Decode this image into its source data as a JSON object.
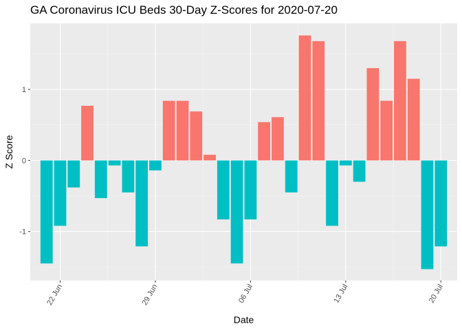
{
  "chart_data": {
    "type": "bar",
    "title": "GA Coronavirus ICU Beds 30-Day Z-Scores for 2020-07-20",
    "xlabel": "Date",
    "ylabel": "Z Score",
    "x": [
      "2020-06-21",
      "2020-06-22",
      "2020-06-23",
      "2020-06-24",
      "2020-06-25",
      "2020-06-26",
      "2020-06-27",
      "2020-06-28",
      "2020-06-29",
      "2020-06-30",
      "2020-07-01",
      "2020-07-02",
      "2020-07-03",
      "2020-07-04",
      "2020-07-05",
      "2020-07-06",
      "2020-07-07",
      "2020-07-08",
      "2020-07-09",
      "2020-07-10",
      "2020-07-11",
      "2020-07-12",
      "2020-07-13",
      "2020-07-14",
      "2020-07-15",
      "2020-07-16",
      "2020-07-17",
      "2020-07-18",
      "2020-07-19",
      "2020-07-20"
    ],
    "values": [
      -1.45,
      -0.92,
      -0.38,
      0.77,
      -0.53,
      -0.07,
      -0.45,
      -1.21,
      -0.14,
      0.84,
      0.84,
      0.69,
      0.08,
      -0.83,
      -1.45,
      -0.83,
      0.54,
      0.61,
      -0.45,
      1.76,
      1.68,
      -0.92,
      -0.07,
      -0.3,
      1.3,
      0.84,
      1.68,
      1.15,
      -1.53,
      -1.21
    ],
    "x_ticks": [
      {
        "date": "2020-06-22",
        "label": "22 Jun"
      },
      {
        "date": "2020-06-29",
        "label": "29 Jun"
      },
      {
        "date": "2020-07-06",
        "label": "06 Jul"
      },
      {
        "date": "2020-07-13",
        "label": "13 Jul"
      },
      {
        "date": "2020-07-20",
        "label": "20 Jul"
      }
    ],
    "y_ticks": [
      -1,
      0,
      1
    ],
    "ylim": [
      -1.69,
      1.93
    ],
    "xlim": [
      "2020-06-19T19:12",
      "2020-07-21T04:48"
    ],
    "grid": true,
    "legend": "none",
    "colors": {
      "positive": "#F8766D",
      "negative": "#00BFC4",
      "panel": "#EBEBEB",
      "grid_major": "#FFFFFF",
      "grid_minor": "#F5F5F5"
    }
  }
}
